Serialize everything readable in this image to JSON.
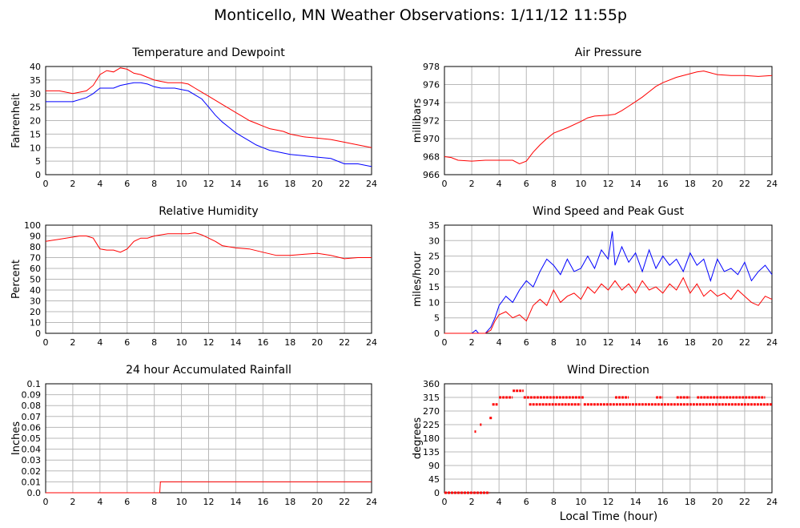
{
  "page": {
    "title": "Monticello, MN Weather Observations: 1/11/12 11:55p",
    "xlabel": "Local Time (hour)"
  },
  "chart_data": [
    {
      "type": "line",
      "title": "Temperature and Dewpoint",
      "xlabel": "",
      "ylabel": "Fahrenheit",
      "xlim": [
        0,
        24
      ],
      "ylim": [
        0,
        40
      ],
      "xticks": [
        0,
        2,
        4,
        6,
        8,
        10,
        12,
        14,
        16,
        18,
        20,
        22,
        24
      ],
      "yticks": [
        0,
        5,
        10,
        15,
        20,
        25,
        30,
        35,
        40
      ],
      "grid": true,
      "series": [
        {
          "color": "#ff0000",
          "x": [
            0,
            1,
            2,
            3,
            3.5,
            4,
            4.5,
            5,
            5.5,
            6,
            6.5,
            7,
            7.5,
            8,
            8.5,
            9,
            9.5,
            10,
            10.5,
            11,
            11.5,
            12,
            12.5,
            13,
            13.5,
            14,
            14.5,
            15,
            15.5,
            16,
            16.5,
            17,
            17.5,
            18,
            19,
            20,
            21,
            22,
            23,
            24
          ],
          "y": [
            31,
            31,
            30,
            31,
            33,
            37,
            38.5,
            38,
            39.5,
            39,
            37.5,
            37,
            36,
            35,
            34.5,
            34,
            34,
            34,
            33.5,
            32,
            30.5,
            29,
            27.5,
            26,
            24.5,
            23,
            21.5,
            20,
            19,
            18,
            17,
            16.5,
            16,
            15,
            14,
            13.5,
            13,
            12,
            11,
            10
          ]
        },
        {
          "color": "#0000ff",
          "x": [
            0,
            1,
            2,
            3,
            3.5,
            4,
            4.5,
            5,
            5.5,
            6,
            6.5,
            7,
            7.5,
            8,
            8.5,
            9,
            9.5,
            10,
            10.5,
            11,
            11.5,
            12,
            12.5,
            13,
            13.5,
            14,
            14.5,
            15,
            15.5,
            16,
            16.5,
            17,
            17.5,
            18,
            19,
            20,
            21,
            22,
            23,
            24
          ],
          "y": [
            27,
            27,
            27,
            28.5,
            30,
            32,
            32,
            32,
            33,
            33.5,
            34,
            34,
            33.5,
            32.5,
            32,
            32,
            32,
            31.5,
            31,
            29.5,
            28,
            25,
            22,
            19.5,
            17.5,
            15.5,
            14,
            12.5,
            11,
            10,
            9,
            8.5,
            8,
            7.5,
            7,
            6.5,
            6,
            4,
            4,
            3
          ]
        }
      ]
    },
    {
      "type": "line",
      "title": "Air Pressure",
      "xlabel": "",
      "ylabel": "millibars",
      "xlim": [
        0,
        24
      ],
      "ylim": [
        966,
        978
      ],
      "xticks": [
        0,
        2,
        4,
        6,
        8,
        10,
        12,
        14,
        16,
        18,
        20,
        22,
        24
      ],
      "yticks": [
        966,
        968,
        970,
        972,
        974,
        976,
        978
      ],
      "grid": true,
      "series": [
        {
          "color": "#ff0000",
          "x": [
            0,
            0.5,
            1,
            2,
            3,
            4,
            5,
            5.5,
            6,
            6.5,
            7,
            7.5,
            8,
            9,
            10,
            10.5,
            11,
            12,
            12.5,
            13,
            13.5,
            14,
            14.5,
            15,
            15.5,
            16,
            17,
            18,
            18.5,
            19,
            19.5,
            20,
            21,
            22,
            23,
            24
          ],
          "y": [
            968,
            967.9,
            967.6,
            967.5,
            967.6,
            967.6,
            967.6,
            967.2,
            967.5,
            968.5,
            969.3,
            970,
            970.6,
            971.2,
            971.9,
            972.3,
            972.5,
            972.6,
            972.7,
            973.1,
            973.6,
            974.1,
            974.6,
            975.2,
            975.8,
            976.2,
            976.8,
            977.2,
            977.4,
            977.5,
            977.3,
            977.1,
            977.0,
            977.0,
            976.9,
            977.0
          ]
        }
      ]
    },
    {
      "type": "line",
      "title": "Relative Humidity",
      "xlabel": "",
      "ylabel": "Percent",
      "xlim": [
        0,
        24
      ],
      "ylim": [
        0,
        100
      ],
      "xticks": [
        0,
        2,
        4,
        6,
        8,
        10,
        12,
        14,
        16,
        18,
        20,
        22,
        24
      ],
      "yticks": [
        0,
        10,
        20,
        30,
        40,
        50,
        60,
        70,
        80,
        90,
        100
      ],
      "grid": true,
      "series": [
        {
          "color": "#ff0000",
          "x": [
            0,
            0.5,
            1,
            1.5,
            2,
            2.5,
            3,
            3.5,
            4,
            4.5,
            5,
            5.5,
            6,
            6.5,
            7,
            7.5,
            8,
            8.5,
            9,
            9.5,
            10,
            10.5,
            11,
            11.5,
            12,
            12.5,
            13,
            13.5,
            14,
            15,
            16,
            17,
            18,
            19,
            20,
            21,
            22,
            23,
            24
          ],
          "y": [
            85,
            86,
            87,
            88,
            89,
            90,
            90,
            88,
            78,
            77,
            77,
            75,
            78,
            85,
            88,
            88,
            90,
            91,
            92,
            92,
            92,
            92,
            93,
            91,
            88,
            85,
            81,
            80,
            79,
            78,
            75,
            72,
            72,
            73,
            74,
            72,
            69,
            70,
            70
          ]
        }
      ]
    },
    {
      "type": "line",
      "title": "Wind Speed and Peak Gust",
      "xlabel": "",
      "ylabel": "miles/hour",
      "xlim": [
        0,
        24
      ],
      "ylim": [
        0,
        35
      ],
      "xticks": [
        0,
        2,
        4,
        6,
        8,
        10,
        12,
        14,
        16,
        18,
        20,
        22,
        24
      ],
      "yticks": [
        0,
        5,
        10,
        15,
        20,
        25,
        30,
        35
      ],
      "grid": true,
      "series": [
        {
          "color": "#0000ff",
          "x": [
            0,
            1,
            2,
            2.3,
            2.5,
            3,
            3.4,
            3.7,
            4,
            4.5,
            5,
            5.5,
            6,
            6.5,
            7,
            7.5,
            8,
            8.5,
            9,
            9.5,
            10,
            10.5,
            11,
            11.5,
            12,
            12.3,
            12.5,
            13,
            13.5,
            14,
            14.5,
            15,
            15.5,
            16,
            16.5,
            17,
            17.5,
            18,
            18.5,
            19,
            19.5,
            20,
            20.5,
            21,
            21.5,
            22,
            22.5,
            23,
            23.5,
            24
          ],
          "y": [
            0,
            0,
            0,
            1,
            0,
            0,
            2,
            5,
            9,
            12,
            10,
            14,
            17,
            15,
            20,
            24,
            22,
            19,
            24,
            20,
            21,
            25,
            21,
            27,
            24,
            33,
            22,
            28,
            23,
            26,
            20,
            27,
            21,
            25,
            22,
            24,
            20,
            26,
            22,
            24,
            17,
            24,
            20,
            21,
            19,
            23,
            17,
            20,
            22,
            19
          ]
        },
        {
          "color": "#ff0000",
          "x": [
            0,
            1,
            2,
            3,
            3.4,
            3.7,
            4,
            4.5,
            5,
            5.5,
            6,
            6.5,
            7,
            7.5,
            8,
            8.5,
            9,
            9.5,
            10,
            10.5,
            11,
            11.5,
            12,
            12.5,
            13,
            13.5,
            14,
            14.5,
            15,
            15.5,
            16,
            16.5,
            17,
            17.5,
            18,
            18.5,
            19,
            19.5,
            20,
            20.5,
            21,
            21.5,
            22,
            22.5,
            23,
            23.5,
            24
          ],
          "y": [
            0,
            0,
            0,
            0,
            1,
            4,
            6,
            7,
            5,
            6,
            4,
            9,
            11,
            9,
            14,
            10,
            12,
            13,
            11,
            15,
            13,
            16,
            14,
            17,
            14,
            16,
            13,
            17,
            14,
            15,
            13,
            16,
            14,
            18,
            13,
            16,
            12,
            14,
            12,
            13,
            11,
            14,
            12,
            10,
            9,
            12,
            11
          ]
        }
      ]
    },
    {
      "type": "line",
      "title": "24 hour Accumulated Rainfall",
      "xlabel": "",
      "ylabel": "Inches",
      "xlim": [
        0,
        24
      ],
      "ylim": [
        0,
        0.1
      ],
      "xticks": [
        0,
        2,
        4,
        6,
        8,
        10,
        12,
        14,
        16,
        18,
        20,
        22,
        24
      ],
      "yticks": [
        0.0,
        0.01,
        0.02,
        0.03,
        0.04,
        0.05,
        0.06,
        0.07,
        0.08,
        0.09,
        0.1
      ],
      "ytick_labels": [
        "0.0",
        "0.01",
        "0.02",
        "0.03",
        "0.04",
        "0.05",
        "0.06",
        "0.07",
        "0.08",
        "0.09",
        "0.1"
      ],
      "grid": true,
      "series": [
        {
          "color": "#ff0000",
          "x": [
            0,
            8.4,
            8.45,
            24
          ],
          "y": [
            0,
            0,
            0.01,
            0.01
          ]
        }
      ]
    },
    {
      "type": "scatter",
      "title": "Wind Direction",
      "xlabel": "",
      "ylabel": "degrees",
      "xlim": [
        0,
        24
      ],
      "ylim": [
        0,
        360
      ],
      "xticks": [
        0,
        2,
        4,
        6,
        8,
        10,
        12,
        14,
        16,
        18,
        20,
        22,
        24
      ],
      "yticks": [
        0,
        45,
        90,
        135,
        180,
        225,
        270,
        315,
        360
      ],
      "grid": true,
      "series": [
        {
          "color": "#ff0000",
          "runs": [
            {
              "x0": 0,
              "x1": 3.3,
              "y": 0
            },
            {
              "x0": 2.2,
              "x1": 2.2,
              "y": 202
            },
            {
              "x0": 2.6,
              "x1": 2.7,
              "y": 225
            },
            {
              "x0": 3.3,
              "x1": 3.5,
              "y": 247
            },
            {
              "x0": 3.5,
              "x1": 3.9,
              "y": 292
            },
            {
              "x0": 4.0,
              "x1": 5.0,
              "y": 315
            },
            {
              "x0": 5.0,
              "x1": 5.8,
              "y": 337
            },
            {
              "x0": 5.8,
              "x1": 10.2,
              "y": 315
            },
            {
              "x0": 6.2,
              "x1": 10.0,
              "y": 292
            },
            {
              "x0": 10.2,
              "x1": 24,
              "y": 292
            },
            {
              "x0": 12.5,
              "x1": 13.5,
              "y": 315
            },
            {
              "x0": 15.5,
              "x1": 16.0,
              "y": 315
            },
            {
              "x0": 17.0,
              "x1": 18.0,
              "y": 315
            },
            {
              "x0": 18.5,
              "x1": 23.5,
              "y": 315
            }
          ]
        }
      ]
    }
  ]
}
